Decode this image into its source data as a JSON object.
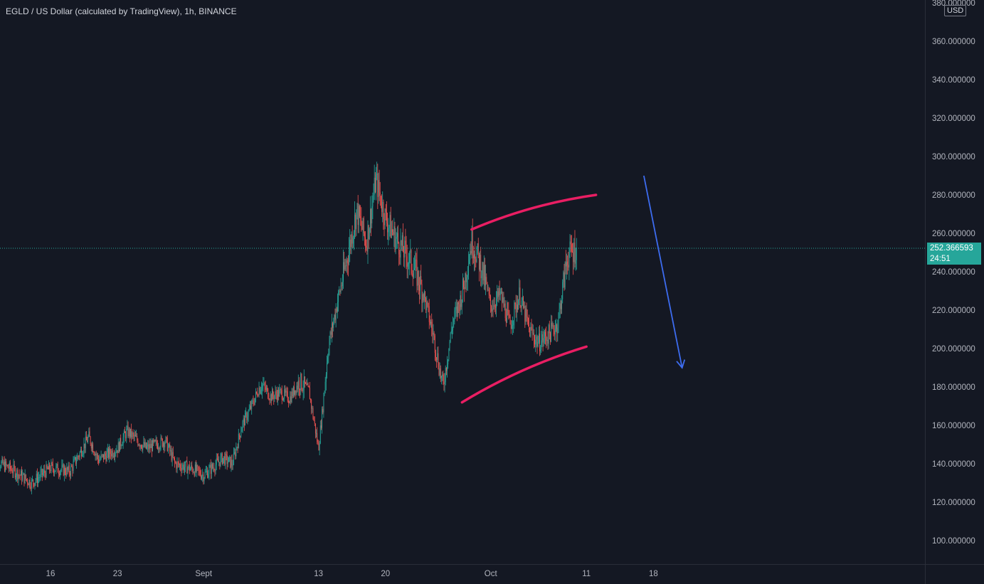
{
  "header": {
    "title": "EGLD / US Dollar (calculated by TradingView), 1h, BINANCE",
    "currency": "USD"
  },
  "last_price": {
    "value": "252.366593",
    "countdown": "24:51"
  },
  "colors": {
    "background": "#141823",
    "up": "#26a69a",
    "down": "#ef5350",
    "arc": "#e91e63",
    "arrow": "#3d6cf0",
    "axis_text": "#b2b5be"
  },
  "chart_data": {
    "type": "candlestick",
    "title": "EGLD / US Dollar (calculated by TradingView), 1h, BINANCE",
    "interval": "1h",
    "ylim": [
      90,
      380
    ],
    "y_ticks": [
      "100.000000",
      "120.000000",
      "140.000000",
      "160.000000",
      "180.000000",
      "200.000000",
      "220.000000",
      "240.000000",
      "260.000000",
      "280.000000",
      "300.000000",
      "320.000000",
      "340.000000",
      "360.000000",
      "380.000000"
    ],
    "y_tick_values": [
      100,
      120,
      140,
      160,
      180,
      200,
      220,
      240,
      260,
      280,
      300,
      320,
      340,
      360,
      380
    ],
    "x_ticks": [
      "16",
      "23",
      "Sept",
      "13",
      "20",
      "Oct",
      "11",
      "18"
    ],
    "x_tick_dates": [
      "2021-08-16",
      "2021-08-23",
      "2021-09-01",
      "2021-09-13",
      "2021-09-20",
      "2021-10-01",
      "2021-10-11",
      "2021-10-18"
    ],
    "current_price": 252.366593,
    "price_path": [
      {
        "date": "2021-08-10",
        "price": 142
      },
      {
        "date": "2021-08-12",
        "price": 137
      },
      {
        "date": "2021-08-14",
        "price": 130
      },
      {
        "date": "2021-08-16",
        "price": 138
      },
      {
        "date": "2021-08-18",
        "price": 136
      },
      {
        "date": "2021-08-20",
        "price": 154
      },
      {
        "date": "2021-08-21",
        "price": 142
      },
      {
        "date": "2021-08-23",
        "price": 148
      },
      {
        "date": "2021-08-24",
        "price": 157
      },
      {
        "date": "2021-08-26",
        "price": 148
      },
      {
        "date": "2021-08-28",
        "price": 152
      },
      {
        "date": "2021-08-29",
        "price": 140
      },
      {
        "date": "2021-08-31",
        "price": 137
      },
      {
        "date": "2021-09-01",
        "price": 134
      },
      {
        "date": "2021-09-03",
        "price": 143
      },
      {
        "date": "2021-09-04",
        "price": 140
      },
      {
        "date": "2021-09-05",
        "price": 160
      },
      {
        "date": "2021-09-06",
        "price": 170
      },
      {
        "date": "2021-09-07",
        "price": 182
      },
      {
        "date": "2021-09-08",
        "price": 175
      },
      {
        "date": "2021-09-09",
        "price": 177
      },
      {
        "date": "2021-09-10",
        "price": 174
      },
      {
        "date": "2021-09-11",
        "price": 183
      },
      {
        "date": "2021-09-12",
        "price": 178
      },
      {
        "date": "2021-09-13",
        "price": 148
      },
      {
        "date": "2021-09-13T12",
        "price": 172
      },
      {
        "date": "2021-09-14",
        "price": 200
      },
      {
        "date": "2021-09-15",
        "price": 225
      },
      {
        "date": "2021-09-16",
        "price": 247
      },
      {
        "date": "2021-09-17",
        "price": 272
      },
      {
        "date": "2021-09-18",
        "price": 255
      },
      {
        "date": "2021-09-19",
        "price": 288
      },
      {
        "date": "2021-09-20",
        "price": 268
      },
      {
        "date": "2021-09-21",
        "price": 258
      },
      {
        "date": "2021-09-22",
        "price": 250
      },
      {
        "date": "2021-09-23",
        "price": 242
      },
      {
        "date": "2021-09-24",
        "price": 228
      },
      {
        "date": "2021-09-25",
        "price": 207
      },
      {
        "date": "2021-09-26",
        "price": 180
      },
      {
        "date": "2021-09-27",
        "price": 213
      },
      {
        "date": "2021-09-28",
        "price": 228
      },
      {
        "date": "2021-09-29",
        "price": 256
      },
      {
        "date": "2021-09-30",
        "price": 243
      },
      {
        "date": "2021-10-01",
        "price": 222
      },
      {
        "date": "2021-10-02",
        "price": 228
      },
      {
        "date": "2021-10-03",
        "price": 212
      },
      {
        "date": "2021-10-04",
        "price": 228
      },
      {
        "date": "2021-10-05",
        "price": 210
      },
      {
        "date": "2021-10-06",
        "price": 203
      },
      {
        "date": "2021-10-07",
        "price": 207
      },
      {
        "date": "2021-10-08",
        "price": 213
      },
      {
        "date": "2021-10-09",
        "price": 248
      },
      {
        "date": "2021-10-10",
        "price": 252
      }
    ],
    "drawings": [
      {
        "type": "arc",
        "name": "upper-arc",
        "from": {
          "date": "2021-09-29",
          "price": 262
        },
        "to": {
          "date": "2021-10-12",
          "price": 280
        }
      },
      {
        "type": "arc",
        "name": "lower-arc",
        "from": {
          "date": "2021-09-28",
          "price": 172
        },
        "to": {
          "date": "2021-10-11",
          "price": 201
        }
      },
      {
        "type": "arrow",
        "name": "down-arrow",
        "from": {
          "date": "2021-10-17",
          "price": 290
        },
        "to": {
          "date": "2021-10-21",
          "price": 190
        }
      }
    ]
  }
}
